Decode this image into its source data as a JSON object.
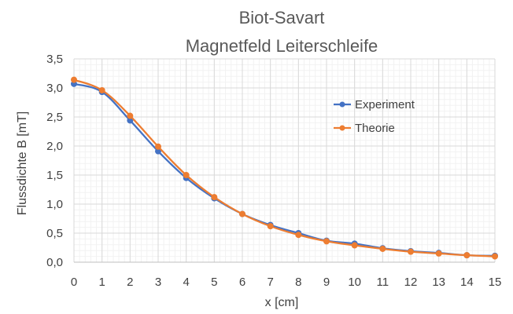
{
  "chart_data": {
    "type": "line",
    "title": "Biot-Savart",
    "subtitle": "Magnetfeld Leiterschleife",
    "xlabel": "x [cm]",
    "ylabel": "Flussdichte B [mT]",
    "x": [
      0,
      1,
      2,
      3,
      4,
      5,
      6,
      7,
      8,
      9,
      10,
      11,
      12,
      13,
      14,
      15
    ],
    "xlim": [
      0,
      15
    ],
    "ylim": [
      0,
      3.5
    ],
    "x_ticks": [
      "0",
      "1",
      "2",
      "3",
      "4",
      "5",
      "6",
      "7",
      "8",
      "9",
      "10",
      "11",
      "12",
      "13",
      "14",
      "15"
    ],
    "y_ticks": [
      "0,0",
      "0,5",
      "1,0",
      "1,5",
      "2,0",
      "2,5",
      "3,0",
      "3,5"
    ],
    "grid": true,
    "legend_position": "right",
    "series": [
      {
        "name": "Experiment",
        "color": "#4472C4",
        "values": [
          3.07,
          2.93,
          2.44,
          1.91,
          1.45,
          1.1,
          0.83,
          0.64,
          0.5,
          0.37,
          0.32,
          0.24,
          0.19,
          0.16,
          0.12,
          0.11
        ]
      },
      {
        "name": "Theorie",
        "color": "#ED7D31",
        "values": [
          3.14,
          2.96,
          2.52,
          1.99,
          1.5,
          1.12,
          0.83,
          0.62,
          0.47,
          0.36,
          0.29,
          0.23,
          0.18,
          0.15,
          0.12,
          0.1
        ]
      }
    ]
  }
}
